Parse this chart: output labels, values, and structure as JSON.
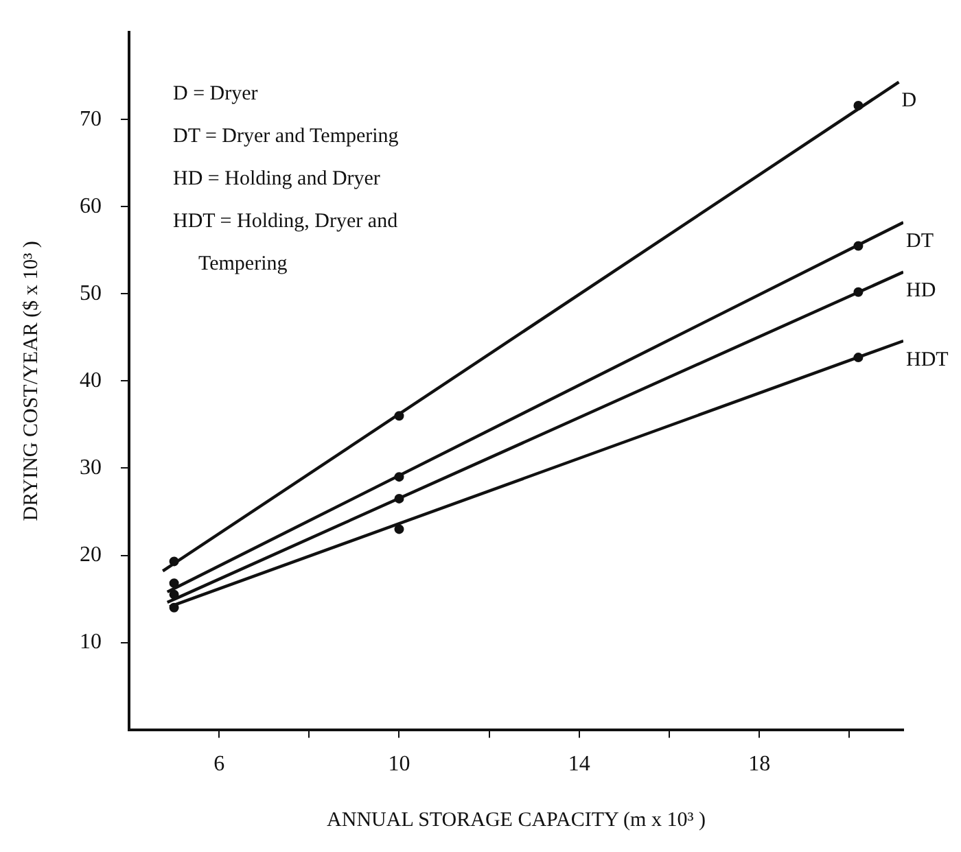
{
  "chart_data": {
    "type": "line",
    "xlabel": "ANNUAL STORAGE CAPACITY (m x 10³ )",
    "ylabel": "DRYING COST/YEAR ($ x 10³ )",
    "xlim": [
      4,
      21.2
    ],
    "ylim": [
      0,
      80
    ],
    "xticks": [
      {
        "value": 6,
        "label": "6"
      },
      {
        "value": 8,
        "label": null
      },
      {
        "value": 10,
        "label": "10"
      },
      {
        "value": 12,
        "label": null
      },
      {
        "value": 14,
        "label": "14"
      },
      {
        "value": 16,
        "label": null
      },
      {
        "value": 18,
        "label": "18"
      },
      {
        "value": 20,
        "label": null
      }
    ],
    "yticks": [
      10,
      20,
      30,
      40,
      50,
      60,
      70
    ],
    "grid": false,
    "legend": false,
    "annotations": [
      "D = Dryer",
      "DT = Dryer and Tempering",
      "HD = Holding and Dryer",
      "HDT = Holding, Dryer and\n     Tempering"
    ],
    "series": [
      {
        "name": "D",
        "marker": "none",
        "color": "#111111",
        "x": [
          4.75,
          21.1
        ],
        "values": [
          18.2,
          74.3
        ]
      },
      {
        "name": "DT",
        "marker": "none",
        "color": "#111111",
        "x": [
          4.85,
          21.2
        ],
        "values": [
          15.8,
          58.2
        ]
      },
      {
        "name": "HD",
        "marker": "none",
        "color": "#111111",
        "x": [
          4.85,
          21.2
        ],
        "values": [
          14.6,
          52.5
        ]
      },
      {
        "name": "HDT",
        "marker": "none",
        "color": "#111111",
        "x": [
          4.9,
          21.2
        ],
        "values": [
          14.1,
          44.6
        ]
      },
      {
        "type": "scatter",
        "marker": "circle",
        "color": "#111111",
        "x": [
          5,
          10,
          20.2
        ],
        "values": [
          19.3,
          36,
          71.6
        ]
      },
      {
        "type": "scatter",
        "marker": "circle",
        "color": "#111111",
        "x": [
          5,
          10,
          20.2
        ],
        "values": [
          16.8,
          29,
          55.5
        ]
      },
      {
        "type": "scatter",
        "marker": "circle",
        "color": "#111111",
        "x": [
          5,
          10,
          20.2
        ],
        "values": [
          15.5,
          26.5,
          50.2
        ]
      },
      {
        "type": "scatter",
        "marker": "circle",
        "color": "#111111",
        "x": [
          5,
          10,
          20.2
        ],
        "values": [
          14,
          23,
          42.7
        ]
      }
    ]
  }
}
